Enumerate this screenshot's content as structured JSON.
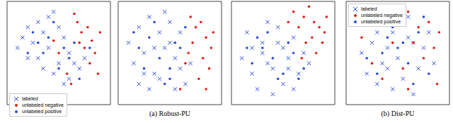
{
  "chart_data": [
    {
      "type": "scatter",
      "xlim": [
        0,
        100
      ],
      "ylim": [
        0,
        100
      ],
      "tick_labels": false,
      "legend": "lower left",
      "series": [
        {
          "name": "labeled",
          "color": "#2a4bd7",
          "marker": "x",
          "x": [
            10,
            15,
            20,
            25,
            30,
            35,
            40,
            45,
            50,
            55,
            60,
            65,
            70,
            75,
            30,
            40,
            50,
            20,
            45,
            60,
            35,
            55
          ],
          "values": [
            55,
            65,
            75,
            60,
            80,
            70,
            85,
            90,
            75,
            65,
            50,
            40,
            35,
            45,
            45,
            55,
            40,
            45,
            30,
            25,
            35,
            20
          ]
        },
        {
          "name": "unlabeled negative",
          "color": "#e0201b",
          "marker": "circle",
          "x": [
            68,
            72,
            78,
            82,
            75,
            85,
            65,
            70,
            80,
            88,
            50,
            58,
            45,
            62,
            90
          ],
          "values": [
            80,
            70,
            75,
            62,
            55,
            50,
            88,
            60,
            40,
            30,
            50,
            30,
            62,
            20,
            70
          ]
        },
        {
          "name": "unlabeled positive",
          "color": "#2a4bd7",
          "marker": "circle",
          "x": [
            25,
            35,
            45,
            55,
            60,
            40,
            30,
            50,
            70,
            65,
            80,
            20
          ],
          "values": [
            70,
            50,
            80,
            55,
            45,
            65,
            60,
            35,
            25,
            60,
            55,
            50
          ]
        }
      ]
    },
    {
      "type": "scatter",
      "title": "(a) Robust-PU",
      "xlim": [
        0,
        100
      ],
      "ylim": [
        0,
        100
      ],
      "tick_labels": false,
      "legend": "none",
      "series": [
        {
          "name": "labeled",
          "color": "#2a4bd7",
          "marker": "x",
          "x": [
            10,
            15,
            20,
            25,
            30,
            35,
            40,
            45,
            50,
            55,
            60,
            20,
            30,
            40,
            50,
            60,
            65,
            70,
            25,
            45,
            35,
            55
          ],
          "values": [
            60,
            40,
            75,
            50,
            85,
            30,
            70,
            55,
            80,
            45,
            35,
            20,
            15,
            25,
            60,
            70,
            20,
            40,
            30,
            90,
            55,
            15
          ]
        },
        {
          "name": "unlabeled negative",
          "color": "#e0201b",
          "marker": "circle",
          "x": [
            70,
            75,
            80,
            85,
            90,
            72,
            82,
            88,
            68,
            78,
            60,
            85,
            92,
            65
          ],
          "values": [
            85,
            75,
            80,
            65,
            55,
            60,
            45,
            35,
            50,
            25,
            15,
            15,
            70,
            40
          ]
        },
        {
          "name": "unlabeled positive",
          "color": "#2a4bd7",
          "marker": "circle",
          "x": [
            20,
            30,
            40,
            50,
            55,
            35,
            45,
            25,
            60,
            15,
            50,
            65
          ],
          "values": [
            55,
            65,
            45,
            35,
            60,
            80,
            20,
            35,
            55,
            70,
            25,
            75
          ]
        }
      ]
    },
    {
      "type": "scatter",
      "xlim": [
        0,
        100
      ],
      "ylim": [
        0,
        100
      ],
      "tick_labels": false,
      "legend": "none",
      "series": [
        {
          "name": "labeled",
          "color": "#2a4bd7",
          "marker": "x",
          "x": [
            10,
            15,
            20,
            30,
            35,
            40,
            45,
            50,
            55,
            60,
            65,
            70,
            25,
            35,
            45,
            55,
            30,
            50,
            40,
            60,
            75,
            20
          ],
          "values": [
            45,
            70,
            30,
            50,
            80,
            35,
            60,
            20,
            45,
            65,
            30,
            50,
            15,
            40,
            75,
            35,
            60,
            55,
            10,
            15,
            40,
            55
          ]
        },
        {
          "name": "unlabeled negative",
          "color": "#e0201b",
          "marker": "circle",
          "x": [
            60,
            70,
            75,
            80,
            85,
            90,
            65,
            78,
            88,
            72,
            55,
            82,
            92,
            68
          ],
          "values": [
            90,
            85,
            95,
            80,
            75,
            70,
            75,
            65,
            60,
            60,
            80,
            50,
            85,
            45
          ]
        },
        {
          "name": "unlabeled positive",
          "color": "#2a4bd7",
          "marker": "circle",
          "x": [
            20,
            30,
            40,
            50,
            60,
            35,
            45,
            25,
            55,
            65,
            15,
            70
          ],
          "values": [
            40,
            55,
            45,
            30,
            50,
            70,
            25,
            65,
            60,
            25,
            55,
            35
          ]
        }
      ]
    },
    {
      "type": "scatter",
      "title": "(b) Dist-PU",
      "xlim": [
        0,
        100
      ],
      "ylim": [
        0,
        100
      ],
      "tick_labels": false,
      "legend": "upper left",
      "series": [
        {
          "name": "labeled",
          "color": "#2a4bd7",
          "marker": "x",
          "x": [
            15,
            25,
            35,
            45,
            55,
            65,
            75,
            85,
            20,
            30,
            40,
            50,
            60,
            70,
            80,
            50,
            60,
            45,
            55,
            65,
            30,
            40
          ],
          "values": [
            50,
            60,
            40,
            70,
            80,
            60,
            55,
            40,
            30,
            20,
            55,
            45,
            65,
            35,
            70,
            90,
            85,
            15,
            25,
            10,
            70,
            35
          ]
        },
        {
          "name": "unlabeled negative",
          "color": "#e0201b",
          "marker": "circle",
          "x": [
            50,
            60,
            70,
            80,
            90,
            65,
            75,
            85,
            45,
            55,
            35,
            25,
            15,
            88,
            60
          ],
          "values": [
            85,
            90,
            75,
            80,
            70,
            60,
            45,
            55,
            60,
            35,
            25,
            40,
            65,
            20,
            15
          ]
        },
        {
          "name": "unlabeled positive",
          "color": "#2a4bd7",
          "marker": "circle",
          "x": [
            20,
            30,
            40,
            50,
            60,
            70,
            80,
            35,
            55,
            65,
            45,
            75
          ],
          "values": [
            45,
            30,
            65,
            55,
            40,
            70,
            30,
            50,
            60,
            20,
            75,
            85
          ]
        }
      ]
    }
  ]
}
